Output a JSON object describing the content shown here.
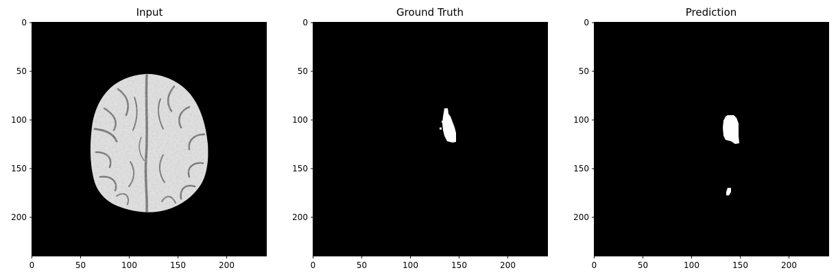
{
  "figure": {
    "panels": [
      {
        "id": "input",
        "title": "Input",
        "image": "mri-brain-slice",
        "x_ticks": [
          "0",
          "50",
          "100",
          "150",
          "200"
        ],
        "y_ticks": [
          "0",
          "50",
          "100",
          "150",
          "200"
        ]
      },
      {
        "id": "ground-truth",
        "title": "Ground Truth",
        "image": "segmentation-mask",
        "x_ticks": [
          "0",
          "50",
          "100",
          "150",
          "200"
        ],
        "y_ticks": [
          "0",
          "50",
          "100",
          "150",
          "200"
        ]
      },
      {
        "id": "prediction",
        "title": "Prediction",
        "image": "segmentation-mask",
        "x_ticks": [
          "0",
          "50",
          "100",
          "150",
          "200"
        ],
        "y_ticks": [
          "0",
          "50",
          "100",
          "150",
          "200"
        ]
      }
    ],
    "colors": {
      "background": "#000000",
      "mask": "#ffffff",
      "tissue": "#d9d9d9",
      "sulcus": "#6e6e6e"
    }
  }
}
